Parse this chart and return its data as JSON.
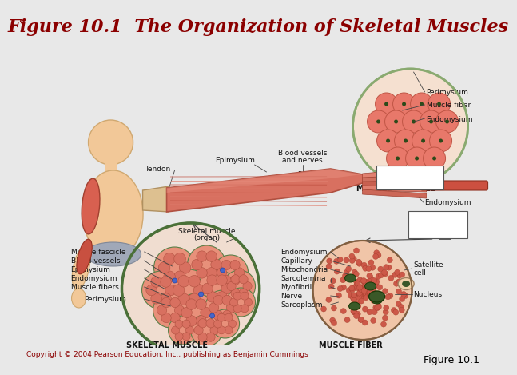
{
  "title": "Figure 10.1  The Organization of Skeletal Muscles",
  "title_color": "#8B0000",
  "title_fontsize": 16,
  "title_fontweight": "bold",
  "bg_color": "#e8e8e8",
  "inner_bg_color": "#ffffff",
  "copyright_text": "Copyright © 2004 Pearson Education, Inc., publishing as Benjamin Cummings",
  "copyright_color": "#8B0000",
  "copyright_fontsize": 6.5,
  "figure_label": "Figure 10.1",
  "figure_label_color": "#000000",
  "figure_label_fontsize": 9,
  "divider_color": "#b0b0b0",
  "ann_fontsize": 6.5,
  "ann_color": "#111111"
}
